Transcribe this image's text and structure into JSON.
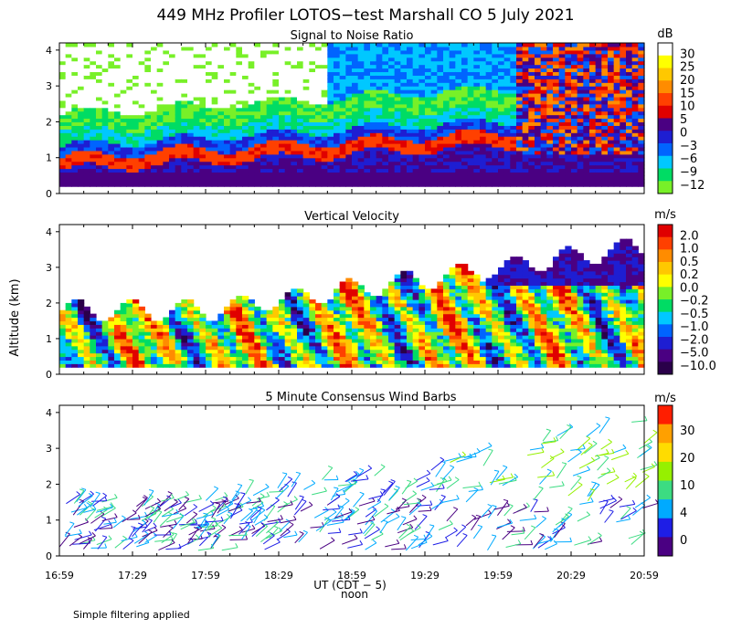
{
  "title": "449 MHz Profiler LOTOS−test Marshall CO  5 July 2021",
  "ylabel": "Altitude (km)",
  "footnote": "Simple filtering applied",
  "xaxis": {
    "ticks": [
      "16:59",
      "17:29",
      "17:59",
      "18:29",
      "18:59",
      "19:29",
      "19:59",
      "20:29",
      "20:59"
    ],
    "tick_values_min": [
      0,
      30,
      60,
      90,
      120,
      150,
      180,
      210,
      240
    ],
    "label": "UT  (CDT − 5)",
    "sublabel": "noon",
    "range_min": [
      0,
      240
    ]
  },
  "chart_data": [
    {
      "type": "heatmap",
      "name": "snr",
      "title": "Signal to Noise Ratio",
      "ylim": [
        0,
        4.2
      ],
      "yticks": [
        "0",
        "1",
        "2",
        "3",
        "4"
      ],
      "ytick_values": [
        0,
        1,
        2,
        3,
        4
      ],
      "colorbar": {
        "unit": "dB",
        "labels": [
          "30",
          "25",
          "20",
          "15",
          "10",
          "5",
          "0",
          "−3",
          "−6",
          "−9",
          "−12"
        ],
        "colors": [
          "#ffffff",
          "#ffff00",
          "#ffc800",
          "#ff8c00",
          "#ff4000",
          "#e00000",
          "#4a0082",
          "#1e1ed2",
          "#0064ff",
          "#00c8ff",
          "#00dc64",
          "#78f028"
        ]
      }
    },
    {
      "type": "heatmap",
      "name": "vertical-velocity",
      "title": "Vertical Velocity",
      "ylim": [
        0,
        4.2
      ],
      "yticks": [
        "0",
        "1",
        "2",
        "3",
        "4"
      ],
      "ytick_values": [
        0,
        1,
        2,
        3,
        4
      ],
      "colorbar": {
        "unit": "m/s",
        "labels": [
          "2.0",
          "1.0",
          "0.5",
          "0.2",
          "0.0",
          "−0.2",
          "−0.5",
          "−1.0",
          "−2.0",
          "−5.0",
          "−10.0"
        ],
        "colors": [
          "#e00000",
          "#ff4000",
          "#ff8c00",
          "#ffc800",
          "#ffff00",
          "#78f028",
          "#00dc64",
          "#00c8ff",
          "#0064ff",
          "#1e1ed2",
          "#4a0082",
          "#2a004a"
        ]
      }
    },
    {
      "type": "wind_barbs",
      "name": "wind-barbs",
      "title": "5 Minute Consensus Wind Barbs",
      "ylim": [
        0,
        4.2
      ],
      "yticks": [
        "0",
        "1",
        "2",
        "3",
        "4"
      ],
      "ytick_values": [
        0,
        1,
        2,
        3,
        4
      ],
      "colorbar": {
        "unit": "m/s",
        "labels": [
          "30",
          "20",
          "10",
          "4",
          "0"
        ],
        "colors": [
          "#ff1e00",
          "#ffa000",
          "#ffdc00",
          "#96f000",
          "#3cdc82",
          "#00aaff",
          "#1e1ee6",
          "#4a0082"
        ]
      }
    }
  ]
}
